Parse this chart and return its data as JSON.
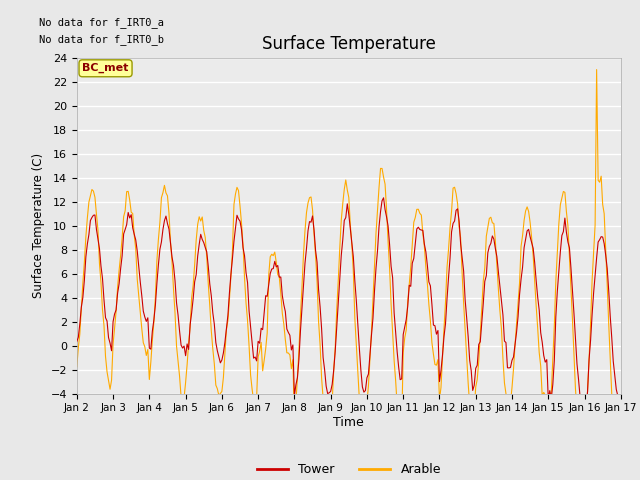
{
  "title": "Surface Temperature",
  "xlabel": "Time",
  "ylabel": "Surface Temperature (C)",
  "ylim": [
    -4,
    24
  ],
  "yticks": [
    -4,
    -2,
    0,
    2,
    4,
    6,
    8,
    10,
    12,
    14,
    16,
    18,
    20,
    22,
    24
  ],
  "xtick_labels": [
    "Jan 2",
    "Jan 3",
    "Jan 4",
    "Jan 5",
    "Jan 6",
    "Jan 7",
    "Jan 8",
    "Jan 9",
    "Jan 10",
    "Jan 11",
    "Jan 12",
    "Jan 13",
    "Jan 14",
    "Jan 15",
    "Jan 16",
    "Jan 17"
  ],
  "no_data_text_line1": "No data for f_IRT0_a",
  "no_data_text_line2": "No data for f_IRT0_b",
  "bc_met_label": "BC_met",
  "tower_color": "#cc0000",
  "arable_color": "#ffaa00",
  "background_color": "#e8e8e8",
  "plot_bg_color": "#ebebeb",
  "legend_entries": [
    "Tower",
    "Arable"
  ],
  "n_days": 15,
  "points_per_day": 24
}
